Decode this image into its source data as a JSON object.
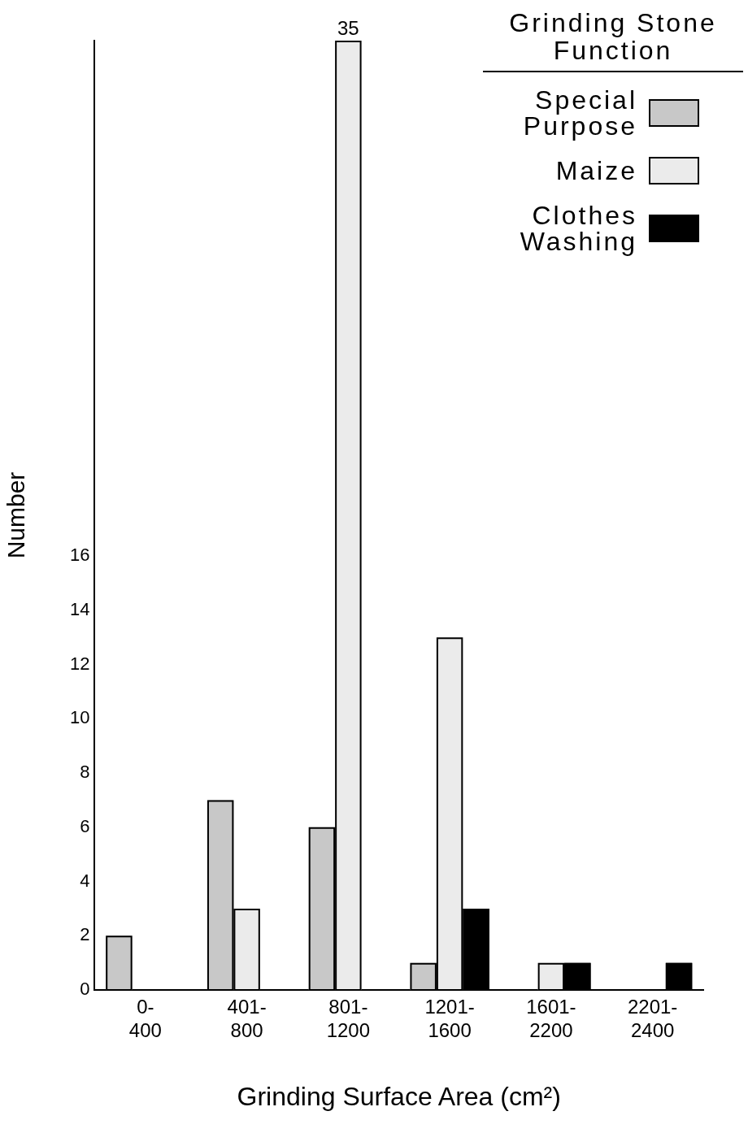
{
  "chart_data": {
    "type": "bar",
    "xlabel": "Grinding Surface Area (cm²)",
    "ylabel": "Number",
    "legend_title": "Grinding Stone Function",
    "categories": [
      "0-400",
      "401-800",
      "801-1200",
      "1201-1600",
      "1601-2200",
      "2201-2400"
    ],
    "series": [
      {
        "name": "Special Purpose",
        "color": "#c8c8c8",
        "values": [
          2,
          7,
          6,
          1,
          0,
          0
        ]
      },
      {
        "name": "Maize",
        "color": "#ebebeb",
        "values": [
          0,
          3,
          35,
          13,
          1,
          0
        ],
        "value_labels": [
          null,
          null,
          "35",
          null,
          null,
          null
        ]
      },
      {
        "name": "Clothes Washing",
        "color": "#000000",
        "values": [
          0,
          0,
          0,
          3,
          1,
          1
        ]
      }
    ],
    "ylim": [
      0,
      35
    ],
    "yticks": [
      0,
      2,
      4,
      6,
      8,
      10,
      12,
      14,
      16
    ],
    "grid": false,
    "legend": "top right"
  }
}
